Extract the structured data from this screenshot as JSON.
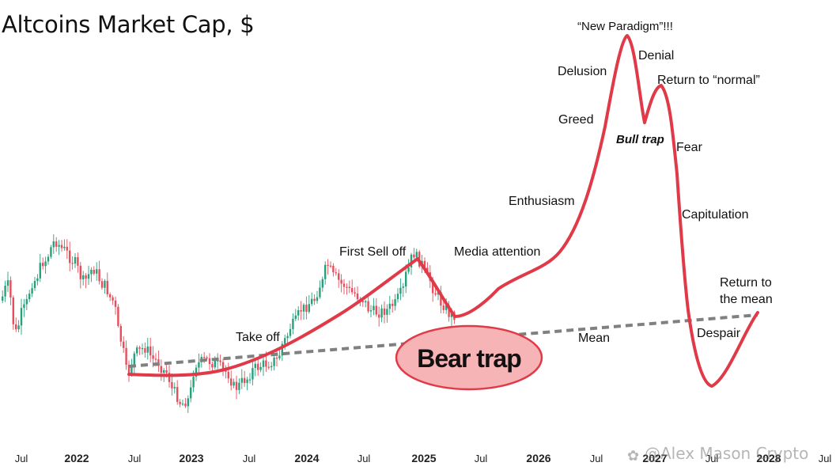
{
  "watermark": "@Alex Mason Crypto",
  "colors": {
    "up": "#26a17b",
    "down": "#e84d5b",
    "curve": "#e03a48",
    "mean": "#808080",
    "bubble_fill": "#f7b4b6",
    "bubble_stroke": "#e03a48"
  },
  "chart_data": {
    "type": "line",
    "title": "Altcoins Market Cap, $",
    "xlabel": "",
    "ylabel": "",
    "x_ticks": [
      "Jul",
      "2022",
      "Jul",
      "2023",
      "Jul",
      "2024",
      "Jul",
      "2025",
      "Jul",
      "2026",
      "Jul",
      "2027",
      "Jul",
      "2028",
      "Jul"
    ],
    "x_tick_bold": [
      false,
      true,
      false,
      true,
      false,
      true,
      false,
      true,
      false,
      true,
      false,
      true,
      false,
      true,
      false
    ],
    "x_range_years": [
      2021.5,
      2028.5
    ],
    "series": [
      {
        "name": "Altcoins market cap (candles)",
        "kind": "candlestick",
        "x_range": [
          2021.5,
          2025.2
        ]
      },
      {
        "name": "Cycle curve",
        "kind": "line",
        "x_range": [
          2022.62,
          2028.17
        ]
      },
      {
        "name": "Mean",
        "kind": "dashed-trendline",
        "x_range": [
          2022.62,
          2028.22
        ]
      }
    ],
    "annotations": [
      {
        "text": "Take off"
      },
      {
        "text": "First Sell off"
      },
      {
        "text": "Media attention"
      },
      {
        "text": "Enthusiasm"
      },
      {
        "text": "Greed"
      },
      {
        "text": "Delusion"
      },
      {
        "text": "“New Paradigm”!!!"
      },
      {
        "text": "Denial"
      },
      {
        "text": "Return to “normal”"
      },
      {
        "text": "Bull trap"
      },
      {
        "text": "Fear"
      },
      {
        "text": "Capitulation"
      },
      {
        "text": "Return to"
      },
      {
        "text": "the mean"
      },
      {
        "text": "Despair"
      },
      {
        "text": "Mean"
      }
    ],
    "callout": "Bear trap"
  }
}
